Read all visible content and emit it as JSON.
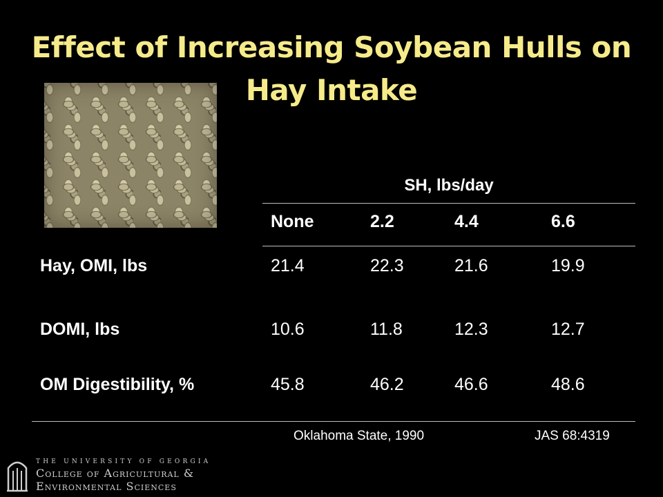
{
  "slide": {
    "title": "Effect of Increasing Soybean Hulls on Hay Intake"
  },
  "image": {
    "icon": "soybean-hull-pellets-photo"
  },
  "table": {
    "group_header": "SH, lbs/day",
    "columns": [
      "None",
      "2.2",
      "4.4",
      "6.6"
    ],
    "rows": [
      {
        "label": "Hay, OMI, lbs",
        "values": [
          "21.4",
          "22.3",
          "21.6",
          "19.9"
        ]
      },
      {
        "label": "DOMI, lbs",
        "values": [
          "10.6",
          "11.8",
          "12.3",
          "12.7"
        ]
      },
      {
        "label": "OM Digestibility, %",
        "values": [
          "45.8",
          "46.2",
          "46.6",
          "48.6"
        ]
      }
    ]
  },
  "footer": {
    "source": "Oklahoma State, 1990",
    "citation": "JAS 68:4319"
  },
  "logo": {
    "line1": "THE UNIVERSITY OF GEORGIA",
    "line2": "College of Agricultural &",
    "line3": "Environmental Sciences",
    "icon": "arch-columns-icon"
  }
}
